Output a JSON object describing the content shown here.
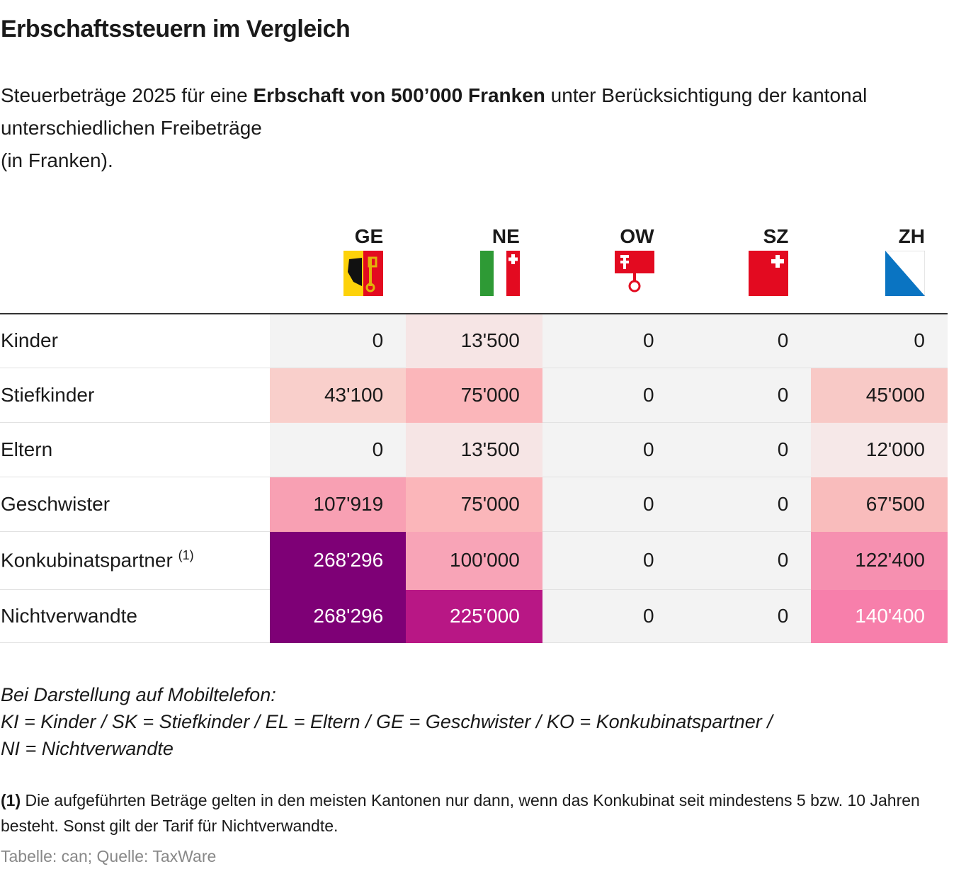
{
  "title": "Erbschaftssteuern im Vergleich",
  "subtitle": {
    "pre": "Steuerbeträge 2025 für eine ",
    "bold": "Erbschaft von 500’000 Franken",
    "post": " unter Berücksichtigung der kantonal unterschiedlichen Freibeträge",
    "line3": "(in Franken)."
  },
  "chart_data": {
    "type": "table",
    "columns": [
      {
        "code": "GE",
        "flag": "geneva-flag-icon"
      },
      {
        "code": "NE",
        "flag": "neuchatel-flag-icon"
      },
      {
        "code": "OW",
        "flag": "obwalden-flag-icon"
      },
      {
        "code": "SZ",
        "flag": "schwyz-flag-icon"
      },
      {
        "code": "ZH",
        "flag": "zurich-flag-icon"
      }
    ],
    "rows": [
      {
        "label": "Kinder",
        "values": [
          "0",
          "13'500",
          "0",
          "0",
          "0"
        ],
        "colors": [
          "#f3f3f3",
          "#f6e5e5",
          "#f3f3f3",
          "#f3f3f3",
          "#f3f3f3"
        ]
      },
      {
        "label": "Stiefkinder",
        "values": [
          "43'100",
          "75'000",
          "0",
          "0",
          "45'000"
        ],
        "colors": [
          "#f9cfcb",
          "#fbb6ba",
          "#f3f3f3",
          "#f3f3f3",
          "#f8c9c6"
        ]
      },
      {
        "label": "Eltern",
        "values": [
          "0",
          "13'500",
          "0",
          "0",
          "12'000"
        ],
        "colors": [
          "#f3f3f3",
          "#f6e5e5",
          "#f3f3f3",
          "#f3f3f3",
          "#f6e8e8"
        ]
      },
      {
        "label": "Geschwister",
        "values": [
          "107'919",
          "75'000",
          "0",
          "0",
          "67'500"
        ],
        "colors": [
          "#f8a0b3",
          "#fbb6ba",
          "#f3f3f3",
          "#f3f3f3",
          "#f9bcbc"
        ]
      },
      {
        "label": "Konkubinatspartner",
        "sup": "(1)",
        "values": [
          "268'296",
          "100'000",
          "0",
          "0",
          "122'400"
        ],
        "colors": [
          "#7e0076",
          "#f8a4b7",
          "#f3f3f3",
          "#f3f3f3",
          "#f690b0"
        ]
      },
      {
        "label": "Nichtverwandte",
        "values": [
          "268'296",
          "225'000",
          "0",
          "0",
          "140'400"
        ],
        "colors": [
          "#7e0076",
          "#b81785",
          "#f3f3f3",
          "#f3f3f3",
          "#f77fab"
        ]
      }
    ]
  },
  "mobile": {
    "line1": "Bei Darstellung auf Mobiltelefon:",
    "line2": "KI = Kinder / SK = Stiefkinder / EL = Eltern / GE = Geschwister / KO = Konkubinatspartner /",
    "line3": "NI = Nichtverwandte"
  },
  "note": {
    "marker": "(1)",
    "text": " Die aufgeführten Beträge gelten in den meisten Kantonen nur dann, wenn das Konkubinat seit mindestens 5 bzw. 10 Jahren besteht. Sonst gilt der Tarif für Nichtverwandte."
  },
  "source": "Tabelle: can; Quelle: TaxWare"
}
